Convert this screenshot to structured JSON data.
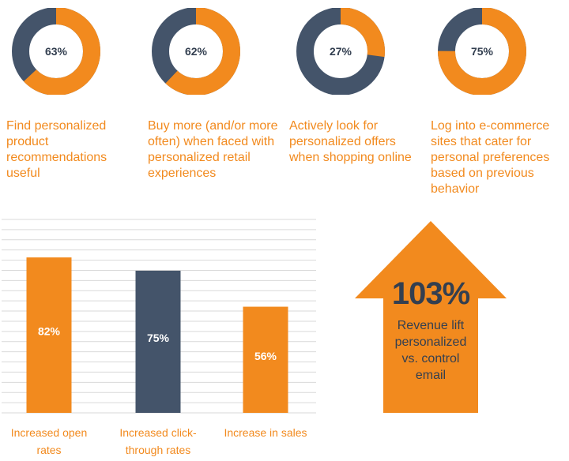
{
  "colors": {
    "orange": "#f28a1e",
    "navy": "#44546a",
    "text_dark": "#333f50",
    "white": "#ffffff",
    "grid": "#d9d9d9"
  },
  "donuts": [
    {
      "value": 63,
      "label": "63%",
      "caption": "Find personalized product recommendations useful"
    },
    {
      "value": 62,
      "label": "62%",
      "caption": "Buy more (and/or more often) when faced with personalized retail experiences"
    },
    {
      "value": 27,
      "label": "27%",
      "caption": "Actively look for personalized offers when shopping online"
    },
    {
      "value": 75,
      "label": "75%",
      "caption": "Log into e-commerce sites that cater for personal preferences based on previous behavior"
    }
  ],
  "chart_data": {
    "type": "bar",
    "categories": [
      "Increased open rates",
      "Increased click-through rates",
      "Increase in sales"
    ],
    "category_lines": [
      [
        "Increased open",
        "rates"
      ],
      [
        "Increased click-",
        "through rates"
      ],
      [
        "Increase in sales"
      ]
    ],
    "values": [
      82,
      75,
      56
    ],
    "value_labels": [
      "82%",
      "75%",
      "56%"
    ],
    "bar_colors": [
      "#f28a1e",
      "#44546a",
      "#f28a1e"
    ],
    "ylim": [
      0,
      100
    ],
    "grid": true
  },
  "callout": {
    "value": "103%",
    "text": "Revenue lift\npersonalized\nvs. control\nemail"
  }
}
